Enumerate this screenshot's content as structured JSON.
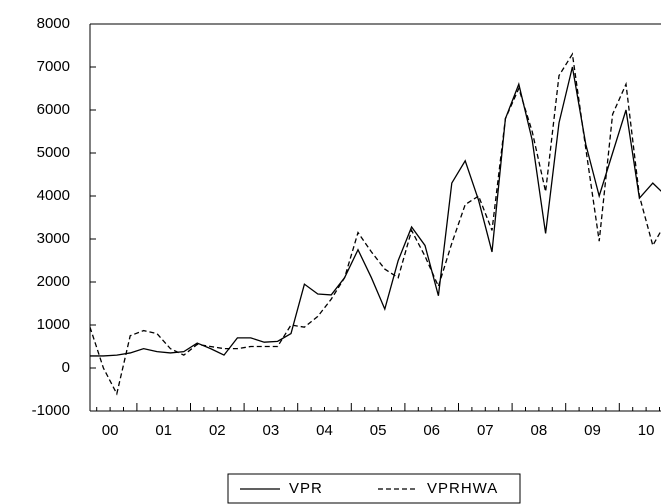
{
  "chart_data": {
    "type": "line",
    "categories": [
      "00",
      null,
      null,
      null,
      "01",
      null,
      null,
      null,
      "02",
      null,
      null,
      null,
      "03",
      null,
      null,
      null,
      "04",
      null,
      null,
      null,
      "05",
      null,
      null,
      null,
      "06",
      null,
      null,
      null,
      "07",
      null,
      null,
      null,
      "08",
      null,
      null,
      null,
      "09",
      null,
      null,
      null,
      "10",
      null,
      null,
      null
    ],
    "series": [
      {
        "name": "VPR",
        "color": "#000000",
        "line_style": "solid",
        "values": [
          280,
          280,
          300,
          350,
          450,
          380,
          350,
          380,
          580,
          450,
          300,
          700,
          700,
          600,
          620,
          800,
          1950,
          1720,
          1700,
          2100,
          2750,
          2100,
          1370,
          2500,
          3280,
          2850,
          1680,
          4300,
          4820,
          3900,
          2700,
          5800,
          6600,
          5300,
          3130,
          5700,
          7000,
          5200,
          4000,
          5000,
          6000,
          3950,
          4300,
          4000
        ]
      },
      {
        "name": "VPRHWA",
        "color": "#000000",
        "line_style": "dashed",
        "values": [
          950,
          0,
          -600,
          750,
          870,
          800,
          450,
          300,
          550,
          500,
          450,
          450,
          500,
          500,
          500,
          1000,
          950,
          1200,
          1600,
          2100,
          3150,
          2700,
          2300,
          2100,
          3200,
          2600,
          1900,
          2900,
          3800,
          4000,
          3200,
          5800,
          6500,
          5500,
          4100,
          6800,
          7300,
          5100,
          2950,
          5900,
          6600,
          4000,
          2850,
          3400
        ]
      }
    ],
    "ylim": [
      -1000,
      8000
    ],
    "yticks": [
      -1000,
      0,
      1000,
      2000,
      3000,
      4000,
      5000,
      6000,
      7000,
      8000
    ],
    "legend": "bottom"
  }
}
